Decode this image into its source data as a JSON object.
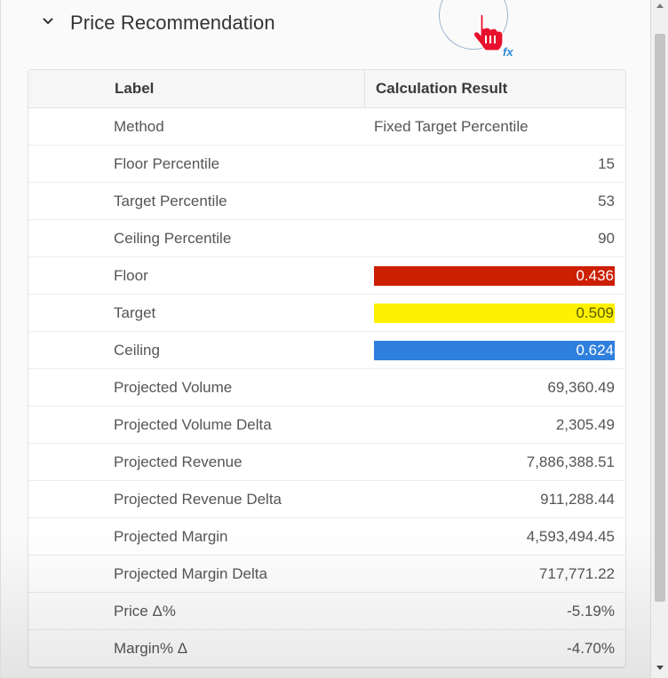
{
  "section": {
    "title": "Price Recommendation",
    "collapse_icon": "chevron-down-icon"
  },
  "table": {
    "columns": [
      "Label",
      "Calculation Result"
    ],
    "rows": [
      {
        "label": "Method",
        "value": "Fixed Target Percentile"
      },
      {
        "label": "Floor Percentile",
        "value": "15"
      },
      {
        "label": "Target Percentile",
        "value": "53"
      },
      {
        "label": "Ceiling Percentile",
        "value": "90"
      },
      {
        "label": "Floor",
        "value": "0.436",
        "bg": "#cc1f04",
        "fg": "#ffffff"
      },
      {
        "label": "Target",
        "value": "0.509",
        "bg": "#fff200",
        "fg": "#5a5a00"
      },
      {
        "label": "Ceiling",
        "value": "0.624",
        "bg": "#2f7fde",
        "fg": "#ffffff"
      },
      {
        "label": "Projected Volume",
        "value": "69,360.49"
      },
      {
        "label": "Projected Volume Delta",
        "value": "2,305.49"
      },
      {
        "label": "Projected Revenue",
        "value": "7,886,388.51"
      },
      {
        "label": "Projected Revenue Delta",
        "value": "911,288.44"
      },
      {
        "label": "Projected Margin",
        "value": "4,593,494.45"
      },
      {
        "label": "Projected Margin Delta",
        "value": "717,771.22"
      },
      {
        "label": "Price Δ%",
        "value": "-5.19%"
      },
      {
        "label": "Margin% Δ",
        "value": "-4.70%"
      }
    ]
  },
  "cursor": {
    "icon": "hand-pointer-icon",
    "badge": "fx"
  }
}
